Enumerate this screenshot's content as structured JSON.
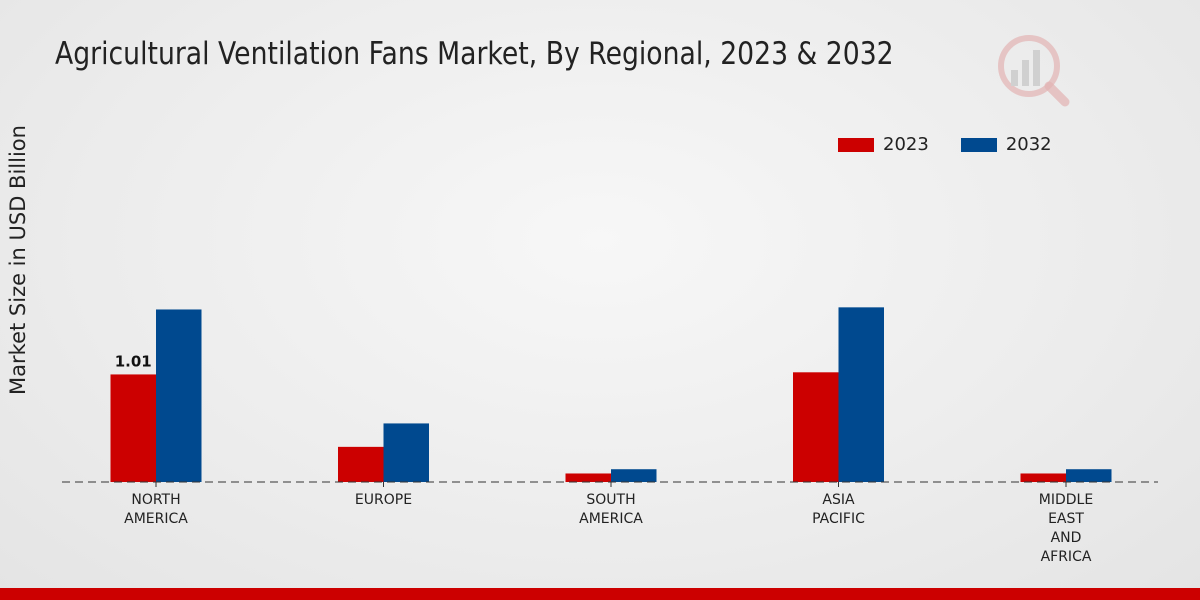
{
  "title": "Agricultural Ventilation Fans Market, By Regional, 2023 & 2032",
  "colors": {
    "2023": "#cc0000",
    "2032": "#00498f",
    "bottom_bar": "#cc0000"
  },
  "chart_data": {
    "type": "bar",
    "title": "Agricultural Ventilation Fans Market, By Regional, 2023 & 2032",
    "xlabel": "",
    "ylabel": "Market Size in USD Billion",
    "categories": [
      "NORTH\nAMERICA",
      "EUROPE",
      "SOUTH\nAMERICA",
      "ASIA\nPACIFIC",
      "MIDDLE\nEAST\nAND\nAFRICA"
    ],
    "series": [
      {
        "name": "2023",
        "color": "#cc0000",
        "values": [
          1.01,
          0.33,
          0.08,
          1.03,
          0.08
        ]
      },
      {
        "name": "2032",
        "color": "#00498f",
        "values": [
          1.62,
          0.55,
          0.12,
          1.64,
          0.12
        ]
      }
    ],
    "data_labels": [
      {
        "series": "2023",
        "category_index": 0,
        "text": "1.01"
      }
    ],
    "ylim": [
      0,
      3.4
    ],
    "legend_position": "top-right",
    "grid": false
  }
}
